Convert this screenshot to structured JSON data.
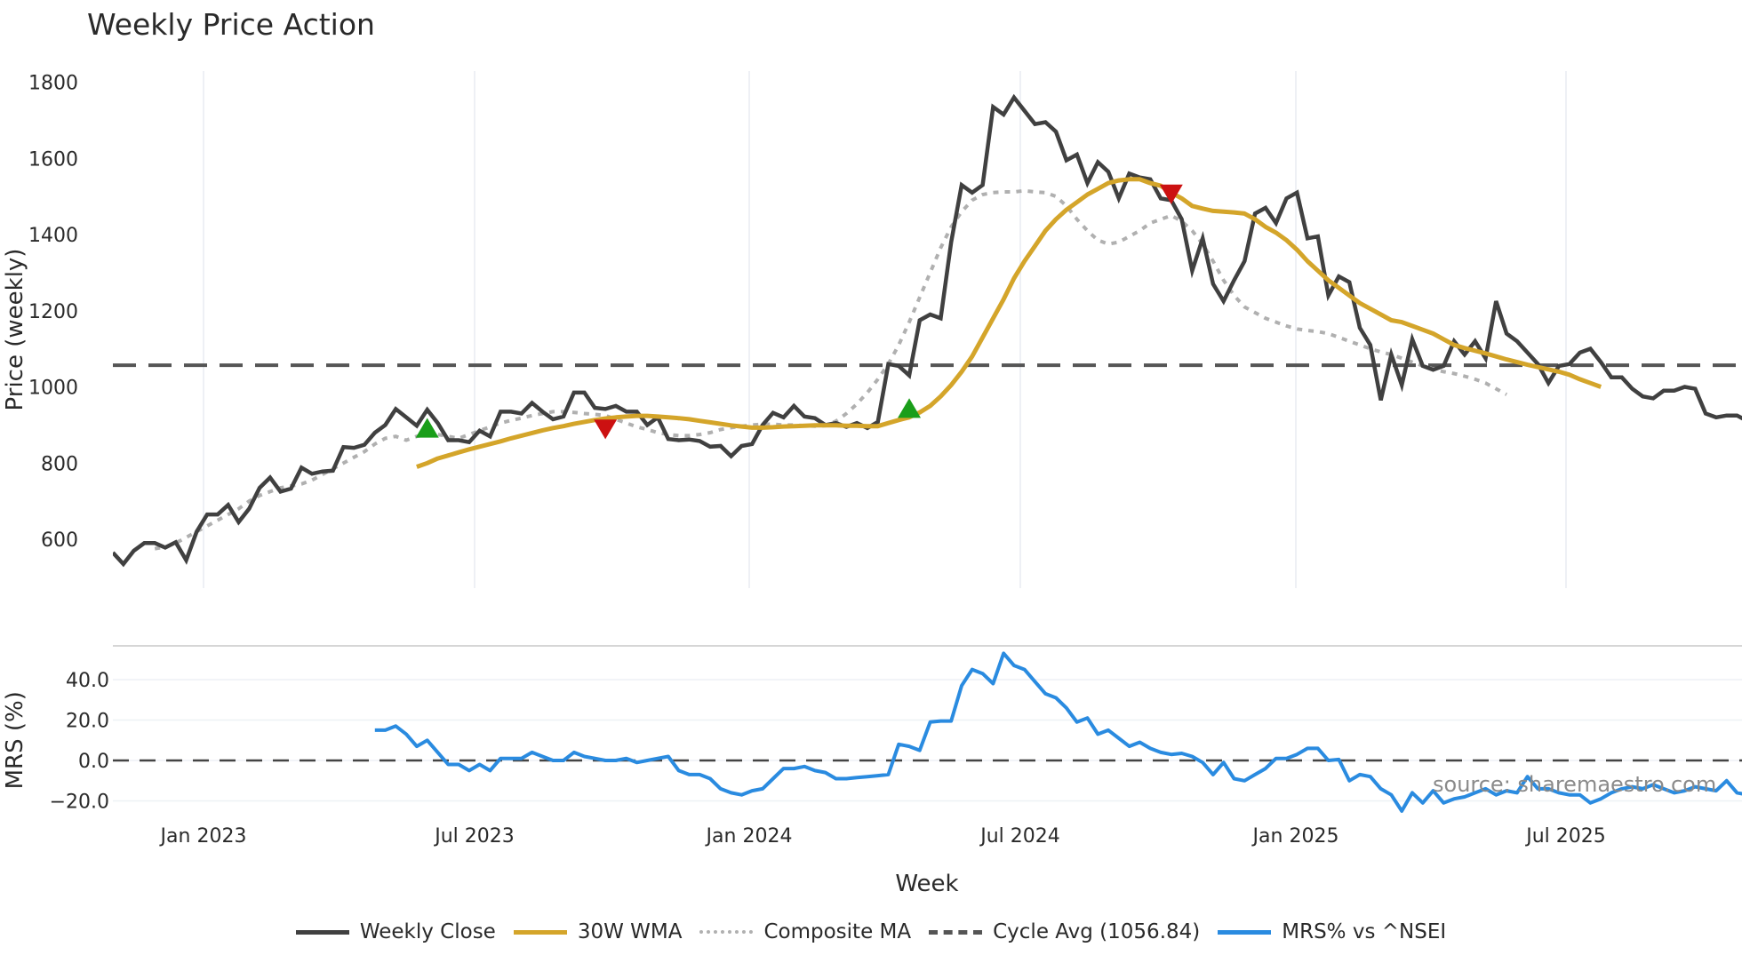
{
  "title": "Weekly Price Action",
  "source_text": "source: sharemaestro.com",
  "xlabel": "Week",
  "legend": [
    {
      "label": "Weekly Close",
      "color": "#404040",
      "style": "solid"
    },
    {
      "label": "30W WMA",
      "color": "#d4a52a",
      "style": "solid"
    },
    {
      "label": "Composite MA",
      "color": "#b0b0b0",
      "style": "dotted"
    },
    {
      "label": "Cycle Avg (1056.84)",
      "color": "#555555",
      "style": "dashed"
    },
    {
      "label": "MRS% vs ^NSEI",
      "color": "#2a8be0",
      "style": "solid"
    }
  ],
  "chart_data": [
    {
      "type": "line",
      "title": "Weekly Price Action",
      "xlabel": "",
      "ylabel": "Price (weekly)",
      "ylim": [
        500,
        1820
      ],
      "yticks": [
        600,
        800,
        1000,
        1200,
        1400,
        1600,
        1800
      ],
      "xticks": [
        "Jan 2023",
        "Jul 2023",
        "Jan 2024",
        "Jul 2024",
        "Jan 2025",
        "Jul 2025"
      ],
      "grid": true,
      "x_start_week": 0,
      "series": [
        {
          "name": "Weekly Close",
          "color": "#404040",
          "values": [
            565,
            535,
            570,
            590,
            590,
            578,
            592,
            545,
            620,
            665,
            665,
            690,
            645,
            680,
            735,
            762,
            725,
            733,
            788,
            772,
            778,
            780,
            842,
            840,
            848,
            880,
            900,
            942,
            920,
            898,
            940,
            905,
            860,
            860,
            855,
            885,
            870,
            935,
            935,
            930,
            958,
            935,
            915,
            922,
            985,
            985,
            945,
            942,
            950,
            935,
            935,
            900,
            920,
            863,
            860,
            862,
            858,
            843,
            845,
            818,
            845,
            850,
            900,
            932,
            920,
            950,
            922,
            918,
            900,
            905,
            895,
            905,
            892,
            908,
            1060,
            1055,
            1030,
            1175,
            1190,
            1180,
            1380,
            1530,
            1510,
            1530,
            1735,
            1715,
            1760,
            1725,
            1690,
            1695,
            1670,
            1595,
            1610,
            1535,
            1590,
            1565,
            1495,
            1560,
            1550,
            1545,
            1495,
            1490,
            1440,
            1305,
            1390,
            1270,
            1225,
            1280,
            1330,
            1455,
            1470,
            1430,
            1495,
            1510,
            1390,
            1395,
            1240,
            1290,
            1275,
            1155,
            1110,
            965,
            1085,
            1005,
            1125,
            1055,
            1045,
            1055,
            1120,
            1085,
            1120,
            1075,
            1225,
            1140,
            1120,
            1090,
            1060,
            1010,
            1055,
            1060,
            1090,
            1100,
            1065,
            1025,
            1025,
            995,
            975,
            970,
            990,
            990,
            1000,
            995,
            930,
            920,
            925,
            925,
            910
          ]
        },
        {
          "name": "30W WMA",
          "color": "#d4a52a",
          "start": 29,
          "values": [
            790,
            800,
            812,
            820,
            828,
            836,
            843,
            850,
            857,
            865,
            872,
            879,
            886,
            892,
            897,
            903,
            908,
            913,
            917,
            920,
            922,
            924,
            924,
            922,
            920,
            918,
            915,
            911,
            907,
            903,
            899,
            896,
            893,
            893,
            894,
            896,
            897,
            898,
            899,
            899,
            899,
            898,
            898,
            897,
            897,
            905,
            913,
            920,
            933,
            950,
            975,
            1005,
            1040,
            1080,
            1130,
            1180,
            1230,
            1285,
            1330,
            1370,
            1410,
            1440,
            1465,
            1485,
            1505,
            1520,
            1535,
            1542,
            1545,
            1545,
            1535,
            1528,
            1510,
            1495,
            1475,
            1468,
            1462,
            1460,
            1458,
            1455,
            1440,
            1420,
            1405,
            1385,
            1360,
            1330,
            1305,
            1280,
            1260,
            1240,
            1220,
            1205,
            1190,
            1175,
            1170,
            1160,
            1150,
            1140,
            1125,
            1110,
            1102,
            1095,
            1088,
            1080,
            1072,
            1065,
            1058,
            1052,
            1046,
            1040,
            1032,
            1020,
            1010,
            1000
          ]
        },
        {
          "name": "Composite MA",
          "color": "#b0b0b0",
          "start": 4,
          "values": [
            575,
            580,
            590,
            605,
            620,
            635,
            650,
            665,
            680,
            700,
            715,
            725,
            735,
            740,
            745,
            755,
            770,
            785,
            800,
            815,
            830,
            850,
            865,
            870,
            860,
            870,
            875,
            875,
            870,
            865,
            875,
            885,
            895,
            905,
            912,
            918,
            925,
            930,
            935,
            935,
            933,
            930,
            928,
            925,
            915,
            905,
            895,
            888,
            880,
            875,
            872,
            872,
            875,
            880,
            888,
            893,
            897,
            900,
            902,
            902,
            900,
            900,
            898,
            897,
            898,
            910,
            930,
            955,
            985,
            1020,
            1060,
            1110,
            1170,
            1235,
            1300,
            1365,
            1420,
            1460,
            1490,
            1505,
            1510,
            1512,
            1512,
            1515,
            1512,
            1510,
            1500,
            1475,
            1440,
            1410,
            1385,
            1375,
            1380,
            1395,
            1410,
            1430,
            1440,
            1450,
            1435,
            1410,
            1375,
            1330,
            1280,
            1240,
            1210,
            1195,
            1180,
            1170,
            1160,
            1152,
            1148,
            1145,
            1140,
            1130,
            1120,
            1110,
            1100,
            1092,
            1085,
            1075,
            1065,
            1055,
            1047,
            1040,
            1035,
            1028,
            1020,
            1010,
            995,
            980
          ]
        },
        {
          "name": "Cycle Avg (1056.84)",
          "color": "#555555",
          "constant": 1056.84
        }
      ],
      "markers": [
        {
          "type": "buy",
          "color": "#1a9e1a",
          "week": 30,
          "value": 888
        },
        {
          "type": "sell",
          "color": "#cc1111",
          "week": 47,
          "value": 893
        },
        {
          "type": "buy",
          "color": "#1a9e1a",
          "week": 76,
          "value": 940
        },
        {
          "type": "sell",
          "color": "#cc1111",
          "week": 101,
          "value": 1510
        }
      ]
    },
    {
      "type": "line",
      "title": "",
      "xlabel": "Week",
      "ylabel": "MRS (%)",
      "ylim": [
        -30,
        57
      ],
      "yticks": [
        -20.0,
        0.0,
        20.0,
        40.0
      ],
      "xticks": [
        "Jan 2023",
        "Jul 2023",
        "Jan 2024",
        "Jul 2024",
        "Jan 2025",
        "Jul 2025"
      ],
      "zero_line": "dashed",
      "series": [
        {
          "name": "MRS% vs ^NSEI",
          "color": "#2a8be0",
          "start": 25,
          "values": [
            15,
            15,
            17,
            13,
            7,
            10,
            4,
            -2,
            -2,
            -5,
            -2,
            -5,
            1,
            1,
            1,
            4,
            2,
            0,
            0,
            4,
            2,
            1,
            0,
            0,
            1,
            -1,
            0,
            1,
            2,
            -5,
            -7,
            -7,
            -9,
            -14,
            -16,
            -17,
            -15,
            -14,
            -9,
            -4,
            -4,
            -3,
            -5,
            -6,
            -9,
            -9,
            -8.5,
            -8,
            -7.5,
            -7,
            8,
            7,
            5,
            19,
            19.5,
            19.5,
            37,
            45,
            43,
            38,
            53,
            47,
            45,
            39,
            33,
            31,
            26,
            19,
            21,
            13,
            15,
            11,
            7,
            9,
            6,
            4,
            3,
            3.5,
            2,
            -1,
            -7,
            -1,
            -9,
            -10,
            -7,
            -4,
            1,
            1,
            3,
            6,
            6,
            0,
            0.5,
            -10,
            -7,
            -8,
            -14,
            -17,
            -25,
            -16,
            -21,
            -15,
            -21,
            -19,
            -18,
            -16,
            -14,
            -17,
            -15,
            -16,
            -8,
            -14,
            -14,
            -16,
            -17,
            -17,
            -21,
            -19,
            -16,
            -14,
            -13,
            -14,
            -12,
            -14,
            -16,
            -15,
            -13,
            -14,
            -15,
            -10,
            -16,
            -17,
            -17,
            -16,
            -16
          ]
        }
      ]
    }
  ]
}
